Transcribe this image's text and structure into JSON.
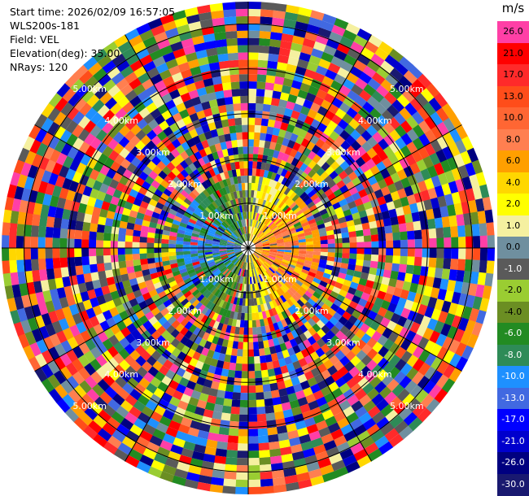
{
  "header": {
    "start_time": "Start time: 2026/02/09 16:57:05",
    "site": "WLS200s-181",
    "field": "Field: VEL",
    "elevation": "Elevation(deg): 35.00",
    "nrays": "NRays: 120"
  },
  "colorbar": {
    "unit": "m/s",
    "levels": [
      {
        "label": "26.0",
        "color": "#ff3fa6"
      },
      {
        "label": "21.0",
        "color": "#ff0000"
      },
      {
        "label": "17.0",
        "color": "#ff2a2a"
      },
      {
        "label": "13.0",
        "color": "#ff4d1a"
      },
      {
        "label": "10.0",
        "color": "#ff6633"
      },
      {
        "label": "8.0",
        "color": "#ff7f50"
      },
      {
        "label": "6.0",
        "color": "#ff9f00"
      },
      {
        "label": "4.0",
        "color": "#ffd700"
      },
      {
        "label": "2.0",
        "color": "#ffff00"
      },
      {
        "label": "1.0",
        "color": "#f5f0a0"
      },
      {
        "label": "0.0",
        "color": "#6f8f9f"
      },
      {
        "label": "-1.0",
        "color": "#5a5a5a"
      },
      {
        "label": "-2.0",
        "color": "#9acd32"
      },
      {
        "label": "-4.0",
        "color": "#6b8e23"
      },
      {
        "label": "-6.0",
        "color": "#228b22"
      },
      {
        "label": "-8.0",
        "color": "#2e8b57"
      },
      {
        "label": "-10.0",
        "color": "#1e90ff"
      },
      {
        "label": "-13.0",
        "color": "#4169e1"
      },
      {
        "label": "-17.0",
        "color": "#0000ff"
      },
      {
        "label": "-21.0",
        "color": "#0000cd"
      },
      {
        "label": "-26.0",
        "color": "#000080"
      },
      {
        "label": "-30.0",
        "color": "#191970"
      }
    ]
  },
  "chart_data": {
    "type": "heatmap",
    "projection": "polar-ppi",
    "field": "VEL",
    "units": "m/s",
    "elevation_deg": 35.0,
    "n_rays": 120,
    "range_rings_km": [
      1,
      2,
      3,
      4,
      5
    ],
    "range_ring_labels": [
      "1.00km",
      "2.00km",
      "3.00km",
      "4.00km",
      "5.00km"
    ],
    "max_range_km": 5.5,
    "inner_pattern": "positive velocities (orange/red) east of radar, negative (green/blue) west",
    "outer_pattern": "noisy multicolor returns beyond ~1.5 km"
  }
}
